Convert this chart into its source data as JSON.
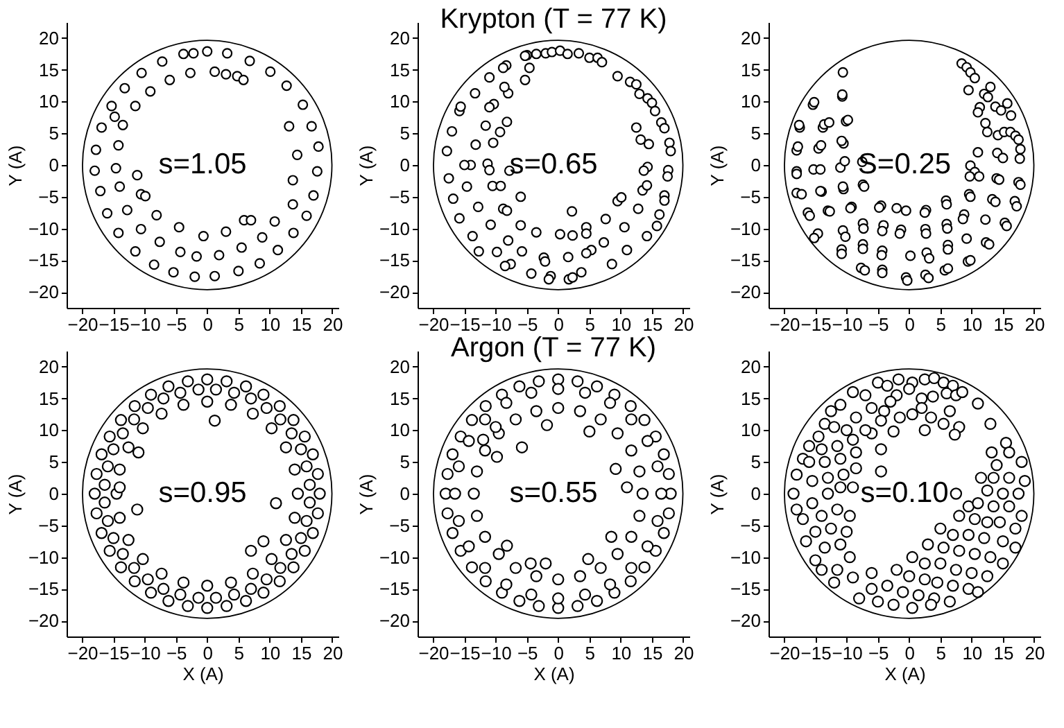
{
  "chart_data": [
    {
      "type": "scatter",
      "ylabel": "Y (A)",
      "annotations": [
        "s=1.05"
      ],
      "xlim": [
        -22.5,
        21
      ],
      "ylim": [
        -22.5,
        22.5
      ],
      "xticks": [
        -20,
        -15,
        -10,
        -5,
        0,
        5,
        10,
        15,
        20
      ],
      "yticks": [
        -20,
        -15,
        -10,
        -5,
        0,
        5,
        10,
        15,
        20
      ],
      "marker": "circle",
      "series": [
        {
          "type": "scatter",
          "color": "#000000",
          "x": [
            0,
            3.2,
            -2.2,
            -3.8,
            -7.2,
            -10.5,
            -13.2,
            -15.3,
            -16.9,
            -17.8,
            -18,
            -17.1,
            -16,
            -14.2,
            -11.5,
            -8.5,
            -5.4,
            -2,
            1.2,
            5,
            8.4,
            11.3,
            13.8,
            15.9,
            17,
            17.6,
            17.8,
            16.7,
            15.3,
            12.7,
            10.1,
            6.8,
            -2.7,
            -6,
            -9.1,
            -11.5,
            -13.5,
            -14.2,
            -14.6,
            -14,
            -12.8,
            -10.6,
            -7.6,
            -4.3,
            -1.7,
            1.9,
            5.5,
            8.8,
            10.8,
            13.7,
            13.7,
            14.4,
            13.1,
            1.2,
            3,
            4.8,
            5.8,
            -11.2,
            -10.6,
            -9.9,
            -8.1,
            -0.6,
            3,
            -4.5,
            5.9,
            7,
            -14.8
          ],
          "values": [
            17.9,
            17.6,
            17.6,
            17.5,
            16.3,
            14.5,
            12.1,
            9.3,
            5.9,
            2.4,
            -0.9,
            -4.1,
            -7.6,
            -10.7,
            -13.6,
            -15.7,
            -16.9,
            -17.6,
            -17.5,
            -16.7,
            -15.5,
            -13.4,
            -10.7,
            -8,
            -4.8,
            -1,
            2.9,
            6.1,
            9.5,
            12.5,
            14.7,
            16.4,
            14.5,
            13.4,
            11.6,
            9.3,
            6.3,
            3.1,
            -0.5,
            -3.4,
            -7.1,
            -10.1,
            -12.1,
            -13.7,
            -14.4,
            -14.2,
            -13,
            -11.4,
            -8.9,
            -6.2,
            -2.4,
            1.6,
            6.1,
            14.7,
            14.3,
            14,
            13.4,
            -1.6,
            -4.6,
            -4.9,
            -7.9,
            -11.2,
            -10.5,
            -9.8,
            -8.7,
            -8.7,
            7.6
          ]
        }
      ]
    },
    {
      "type": "scatter",
      "title": "Krypton (T = 77 K)",
      "ylabel": "Y (A)",
      "annotations": [
        "s=0.65"
      ],
      "xlim": [
        -22.5,
        21
      ],
      "ylim": [
        -22.5,
        22.5
      ],
      "xticks": [
        -20,
        -15,
        -10,
        -5,
        0,
        5,
        10,
        15,
        20
      ],
      "yticks": [
        -20,
        -15,
        -10,
        -5,
        0,
        5,
        10,
        15,
        20
      ],
      "marker": "circle",
      "series": [
        {
          "type": "scatter",
          "color": "#000000",
          "x": [
            -5,
            -3.5,
            -2,
            -1,
            0.3,
            1.5,
            3.3,
            5,
            6.3,
            7,
            9.5,
            11.5,
            12.5,
            13,
            14.3,
            15,
            15.5,
            16.5,
            17,
            17.8,
            18,
            17.6,
            17.5,
            17,
            17,
            16.2,
            15.8,
            14.2,
            11,
            8.6,
            7.3,
            5.3,
            4.5,
            3.7,
            1.7,
            2.3,
            -1.2,
            -1.5,
            -4.3,
            -7.6,
            -8.5,
            -9.8,
            -12.7,
            -13.7,
            -15.8,
            -16.8,
            -17.5,
            -17.8,
            -17,
            -15.8,
            -15.6,
            -13.3,
            -11,
            -8.3,
            -8.8,
            -5.3,
            -4.6,
            -5.3,
            -8,
            -8.6,
            -10.3,
            -11,
            -11.6,
            -13.2,
            -10.4,
            -14,
            -15,
            -11.3,
            -11,
            -14.6,
            -10.5,
            -9.2,
            -12.8,
            -10.8,
            -8.8,
            -8.2,
            -8,
            -6,
            -5.8,
            -3.5,
            -2.3,
            -2.1,
            0.3,
            1.6,
            2.3,
            4.5,
            4.5,
            7.6,
            9.5,
            10.1,
            12.8,
            13.5,
            14.2,
            14.3,
            13.7,
            14.5,
            13.2,
            12.5,
            10.6,
            2.2,
            -6,
            -7.8,
            -8.2,
            -9.3
          ],
          "values": [
            17.3,
            17.5,
            17.6,
            17.8,
            18,
            17.5,
            17.6,
            16.9,
            16.9,
            16.2,
            14,
            13.1,
            12.7,
            11.2,
            10.5,
            9.8,
            8.5,
            6.7,
            5.8,
            3.5,
            2.2,
            -0.8,
            -1.8,
            -4.8,
            -5.6,
            -7.8,
            -9.6,
            -11.2,
            -13.4,
            -15.6,
            -12.2,
            -13.4,
            -13.9,
            -16.9,
            -18,
            -17.7,
            -17.5,
            -18,
            -17.1,
            -15.6,
            -15.9,
            -13.7,
            -13.6,
            -11.2,
            -8.4,
            -5.3,
            -2.1,
            2.2,
            5.3,
            8.5,
            9.2,
            11.3,
            13.8,
            15.7,
            15.3,
            17.2,
            15.3,
            13.4,
            11.3,
            12.3,
            9.6,
            9.1,
            6.2,
            3.2,
            3.5,
            0,
            0,
            0.2,
            -0.8,
            -3.4,
            -3.3,
            -3.3,
            -6.6,
            -9.4,
            -6.9,
            -7.2,
            -11.9,
            -9.5,
            -13.6,
            -10.6,
            -14.6,
            -15.2,
            -10.9,
            -14.5,
            -11.1,
            -9.8,
            -10.8,
            -8.5,
            -5.7,
            -5.1,
            -6.9,
            -4,
            -3.2,
            -0.3,
            -0.9,
            3.3,
            4,
            5.9,
            -9.8,
            -7.3,
            -5,
            -0.9,
            6.8,
            5.2
          ]
        }
      ]
    },
    {
      "type": "scatter",
      "ylabel": "Y (A)",
      "annotations": [
        "S=0.25"
      ],
      "xlim": [
        -22.5,
        21
      ],
      "ylim": [
        -22.5,
        22.5
      ],
      "xticks": [
        -20,
        -15,
        -10,
        -5,
        0,
        5,
        10,
        15,
        20
      ],
      "yticks": [
        -20,
        -15,
        -10,
        -5,
        0,
        5,
        10,
        15,
        20
      ],
      "marker": "circle",
      "series": [
        {
          "type": "scatter",
          "color": "#000000",
          "x": [
            8.4,
            9.2,
            9.8,
            10.5,
            9.5,
            12,
            13,
            12.6,
            11.3,
            13.8,
            11,
            14.7,
            15.7,
            16.3,
            12.2,
            12.5,
            14.2,
            15.2,
            16.2,
            17,
            17.5,
            17.8,
            17.7,
            14.1,
            15,
            11,
            9.8,
            10.5,
            11.2,
            9.7,
            14,
            14.4,
            17.5,
            17.8,
            9.6,
            9.8,
            13.3,
            13.8,
            16.9,
            17.2,
            8.8,
            8.6,
            12.2,
            15.3,
            15.6,
            5.9,
            6,
            2.7,
            2.5,
            -0.5,
            -2,
            -4.5,
            -4.8,
            -7.4,
            -7.3,
            -4.1,
            -4.3,
            -1.3,
            -1.5,
            2.6,
            2.7,
            6,
            6.1,
            9.2,
            12.3,
            12.8,
            6.2,
            6.2,
            2.8,
            3.2,
            0.2,
            -4.3,
            -4.4,
            -7.4,
            -7.4,
            -10.6,
            -10.8,
            -10.8,
            -7.7,
            -7.1,
            -4.3,
            -4.3,
            -0.5,
            -0.3,
            2.6,
            3.1,
            5.7,
            6.2,
            9.4,
            9.8,
            -14.6,
            -16.2,
            -15.9,
            -13,
            -12.7,
            -9.2,
            -9.4,
            -18,
            -17.2,
            -14,
            -14.2,
            -10.5,
            -10.6,
            -7.4,
            -7.2,
            -18,
            -18,
            -15.3,
            -14.2,
            -11,
            -10.3,
            -7.5,
            -18,
            -17.8,
            -14.5,
            -14.1,
            -10.5,
            -10.8,
            -17.5,
            -17.6,
            -13.8,
            -13.6,
            -12.8,
            -10.1,
            -9.8,
            -15.4,
            -15.2,
            -10.7,
            -10.7,
            -10.6,
            -10.2,
            -15.2
          ],
          "values": [
            16,
            15.4,
            14.6,
            13.7,
            11.8,
            11.2,
            12.3,
            10.7,
            9.1,
            9.2,
            8.3,
            8.6,
            9.7,
            7.8,
            6.6,
            5.2,
            4.7,
            5.2,
            5.2,
            4.6,
            4,
            2.5,
            1,
            1.9,
            1.1,
            2,
            -0.1,
            -1.1,
            -1.8,
            -1.8,
            -2.1,
            -2.3,
            -2.7,
            -3.1,
            -4.6,
            -5,
            -5.4,
            -5.8,
            -5.7,
            -6.5,
            -7.8,
            -8.5,
            -8.6,
            -9.1,
            -9.6,
            -5.6,
            -6.2,
            -7.1,
            -7.5,
            -7.2,
            -6.8,
            -6.4,
            -6.7,
            -9.2,
            -10,
            -9.5,
            -10.4,
            -10.2,
            -10.8,
            -10.1,
            -10.8,
            -9.3,
            -10,
            -11.6,
            -12.2,
            -12.5,
            -12.6,
            -13.3,
            -13.8,
            -14.7,
            -14.3,
            -13.5,
            -14.2,
            -12.5,
            -13.2,
            -10.3,
            -13.3,
            -14,
            -16.2,
            -16.6,
            -16.5,
            -17,
            -17.7,
            -18.2,
            -17.3,
            -17.8,
            -16.6,
            -16.3,
            -15.2,
            -15,
            -10.8,
            -7.5,
            -8,
            -7.2,
            -7.3,
            -6.6,
            -6.8,
            -4.4,
            -4.6,
            -4.2,
            -4.1,
            -3.8,
            -3.4,
            -3.1,
            -3.4,
            -1,
            -1.4,
            -0.7,
            -0.7,
            -0.4,
            0.6,
            0.5,
            2.3,
            2.9,
            2.6,
            3.1,
            3.4,
            3.8,
            5.9,
            6.3,
            5.9,
            6.4,
            6.7,
            6.9,
            7.1,
            9.5,
            9.9,
            10.8,
            11.1,
            14.6,
            -11.3,
            -11.5
          ]
        }
      ]
    },
    {
      "type": "scatter",
      "xlabel": "X (A)",
      "ylabel": "Y (A)",
      "annotations": [
        "s=0.95"
      ],
      "xlim": [
        -22.5,
        21
      ],
      "ylim": [
        -22.5,
        22.5
      ],
      "xticks": [
        -20,
        -15,
        -10,
        -5,
        0,
        5,
        10,
        15,
        20
      ],
      "yticks": [
        -20,
        -15,
        -10,
        -5,
        0,
        5,
        10,
        15,
        20
      ],
      "marker": "circle",
      "series": [
        {
          "type": "scatter",
          "color": "#000000",
          "x": [
            18,
            17.7,
            16.9,
            15.6,
            13.8,
            11.6,
            9,
            6.2,
            3.1,
            0,
            -3.1,
            -6.2,
            -9,
            -11.6,
            -13.8,
            -15.6,
            -16.9,
            -17.7,
            -18,
            -17.7,
            -16.9,
            -15.6,
            -13.8,
            -11.6,
            -9,
            -6.2,
            -3.1,
            0,
            3.1,
            6.2,
            9,
            11.6,
            13.8,
            15.6,
            16.9,
            17.7,
            16.4,
            15.9,
            15,
            13.5,
            11.7,
            9.5,
            7,
            4.3,
            1.4,
            -1.4,
            -4.3,
            -7,
            -9.5,
            -11.7,
            -13.5,
            -15,
            -15.9,
            -16.4,
            -16.4,
            -15.9,
            -15,
            -13.5,
            -11.7,
            -9.5,
            -7,
            -4.3,
            -1.4,
            1.4,
            4.3,
            7,
            9.5,
            11.7,
            13.5,
            15,
            15.9,
            16.4,
            14.5,
            14,
            12.6,
            10.3,
            7.3,
            3.8,
            0,
            -3.8,
            -7.3,
            -10.3,
            -12.6,
            -14,
            -14.5,
            -14,
            -12.6,
            -10.3,
            -7.3,
            -3.8,
            0,
            3.8,
            7.3,
            10.3,
            12.6,
            14,
            1.2,
            -11.2,
            -11,
            11,
            7,
            9,
            -14
          ],
          "values": [
            0,
            3.1,
            6.2,
            9,
            11.6,
            13.8,
            15.6,
            16.9,
            17.7,
            18,
            17.7,
            16.9,
            15.6,
            13.8,
            11.6,
            9,
            6.2,
            3.1,
            0,
            -3.1,
            -6.2,
            -9,
            -11.6,
            -13.8,
            -15.6,
            -16.9,
            -17.7,
            -18,
            -17.7,
            -16.9,
            -15.6,
            -13.8,
            -11.6,
            -9,
            -6.2,
            -3.1,
            1.4,
            4.3,
            7,
            9.5,
            11.7,
            13.5,
            15,
            15.9,
            16.4,
            16.4,
            15.9,
            15,
            13.5,
            11.7,
            9.5,
            7,
            4.3,
            1.4,
            -1.4,
            -4.3,
            -7,
            -9.5,
            -11.7,
            -13.5,
            -15,
            -15.9,
            -16.4,
            -16.4,
            -15.9,
            -15,
            -13.5,
            -11.7,
            -9.5,
            -7,
            -4.3,
            -1.4,
            0,
            3.8,
            7.3,
            10.3,
            12.6,
            14,
            14.5,
            14,
            12.6,
            10.3,
            7.3,
            3.8,
            0,
            -3.8,
            -7.3,
            -10.3,
            -12.6,
            -14,
            -14.5,
            -14,
            -12.6,
            -10.3,
            -7.3,
            -3.8,
            11.5,
            -2.5,
            6.5,
            -1.5,
            -9,
            -7.5,
            1
          ]
        }
      ]
    },
    {
      "type": "scatter",
      "title": "Argon (T = 77 K)",
      "xlabel": "X (A)",
      "ylabel": "Y (A)",
      "annotations": [
        "s=0.55"
      ],
      "xlim": [
        -22.5,
        21
      ],
      "ylim": [
        -22.5,
        22.5
      ],
      "xticks": [
        -20,
        -15,
        -10,
        -5,
        0,
        5,
        10,
        15,
        20
      ],
      "yticks": [
        -20,
        -15,
        -10,
        -5,
        0,
        5,
        10,
        15,
        20
      ],
      "marker": "circle",
      "series": [
        {
          "type": "scatter",
          "color": "#000000",
          "x": [
            18,
            17.7,
            16.9,
            15.6,
            13.8,
            11.6,
            9,
            6.2,
            3.1,
            0,
            -3.1,
            -6.2,
            -9,
            -11.6,
            -13.8,
            -15.6,
            -16.9,
            -17.7,
            -18,
            -17.7,
            -16.9,
            -15.6,
            -13.8,
            -11.6,
            -9,
            -6.2,
            -3.1,
            0,
            3.1,
            6.2,
            9,
            11.6,
            13.8,
            15.6,
            16.9,
            17.7,
            16.5,
            15.9,
            14.3,
            11.7,
            8.3,
            4.3,
            0,
            -4.3,
            -8.3,
            -11.7,
            -14.3,
            -15.9,
            -16.5,
            -15.9,
            -14.3,
            -11.7,
            -8.3,
            -4.3,
            0,
            4.3,
            8.3,
            11.7,
            14.3,
            15.9,
            13.5,
            13,
            11.7,
            9.5,
            6.8,
            3.5,
            0,
            -3.5,
            -6.8,
            -9.5,
            -11.7,
            -13,
            -13.5,
            -13,
            -11.7,
            -9.5,
            -6.8,
            -3.5,
            0,
            3.5,
            6.8,
            9.5,
            11.7,
            13,
            -1.8,
            5,
            -5.8,
            -9.8,
            -8.2,
            4.8,
            9.2,
            -4.4,
            -2,
            8.5,
            -10,
            -12,
            11
          ],
          "values": [
            0,
            3.1,
            6.2,
            9,
            11.6,
            13.8,
            15.6,
            16.9,
            17.7,
            18,
            17.7,
            16.9,
            15.6,
            13.8,
            11.6,
            9,
            6.2,
            3.1,
            0,
            -3.1,
            -6.2,
            -9,
            -11.6,
            -13.8,
            -15.6,
            -16.9,
            -17.7,
            -18,
            -17.7,
            -16.9,
            -15.6,
            -13.8,
            -11.6,
            -9,
            -6.2,
            -3.1,
            0,
            4.3,
            8.3,
            11.7,
            14.3,
            15.9,
            16.5,
            15.9,
            14.3,
            11.7,
            8.3,
            4.3,
            0,
            -4.3,
            -8.3,
            -11.7,
            -14.3,
            -15.9,
            -16.5,
            -15.9,
            -14.3,
            -11.7,
            -8.3,
            -4.3,
            0,
            3.5,
            6.8,
            9.5,
            11.7,
            13,
            13.5,
            13,
            11.7,
            9.5,
            6.8,
            3.5,
            0,
            -3.5,
            -6.8,
            -9.5,
            -11.7,
            -13,
            -13.5,
            -13,
            -11.7,
            -9.5,
            -6.8,
            -3.5,
            10.8,
            9.8,
            7.3,
            5.8,
            -8.2,
            -10.3,
            3.9,
            -11,
            -11,
            -6.8,
            10.5,
            8.5,
            1
          ]
        }
      ]
    },
    {
      "type": "scatter",
      "xlabel": "X (A)",
      "ylabel": "Y (A)",
      "annotations": [
        "s=0.10"
      ],
      "xlim": [
        -22.5,
        21
      ],
      "ylim": [
        -22.5,
        22.5
      ],
      "xticks": [
        -20,
        -15,
        -10,
        -5,
        0,
        5,
        10,
        15,
        20
      ],
      "yticks": [
        -20,
        -15,
        -10,
        -5,
        0,
        5,
        10,
        15,
        20
      ],
      "marker": "circle",
      "series": [
        {
          "type": "scatter",
          "color": "#000000",
          "x": [
            -5,
            -3.5,
            -1.7,
            0.5,
            2.5,
            4,
            5.5,
            7,
            -2,
            0,
            2,
            3.8,
            6,
            7.5,
            8.5,
            11,
            -9,
            -7,
            -11,
            -12.5,
            -6,
            -4,
            -1.5,
            0.5,
            2,
            3.5,
            5.5,
            6.5,
            8,
            7.3,
            2.5,
            -2.5,
            -4.5,
            -8.5,
            -10,
            -13.5,
            -14.5,
            -16,
            -17,
            -18,
            -18.5,
            -18,
            -17,
            -16.5,
            -15,
            -14,
            -11.5,
            -12,
            -9,
            -9.5,
            -11,
            -13.5,
            -15,
            -12.5,
            -10,
            -9.5,
            -11.5,
            -14,
            -15.5,
            -13,
            -11,
            -9,
            -15.5,
            -13,
            -10.5,
            -8.5,
            -16,
            -13.5,
            -11,
            -8.5,
            -14,
            -11.5,
            -9,
            -6,
            -4.5,
            -4.5,
            -12,
            -7,
            -3,
            13,
            15.5,
            13.2,
            16,
            18,
            14,
            11.5,
            13.5,
            16,
            18.5,
            12.5,
            15,
            17.5,
            7.5,
            9.5,
            11,
            13.5,
            16,
            18,
            8,
            10.5,
            12.5,
            14.5,
            17,
            5,
            7,
            9.5,
            12,
            15,
            17,
            3,
            5.5,
            8,
            10.5,
            13,
            15,
            0.5,
            2.5,
            5,
            7.5,
            10,
            12.5,
            -2,
            0,
            2.5,
            4.5,
            7,
            9.5,
            11,
            -3.5,
            -1,
            1.5,
            4,
            6.5,
            -6,
            -5,
            -2.5,
            0.5,
            3.5,
            -8,
            -6
          ],
          "values": [
            17.5,
            17,
            18,
            17.5,
            18,
            18.2,
            17.5,
            17,
            15.5,
            16.5,
            15,
            15.3,
            15.8,
            15.5,
            16,
            14.2,
            16,
            15.5,
            14,
            13,
            13.5,
            13,
            12,
            12.5,
            13.5,
            12,
            11,
            13,
            10.5,
            9.3,
            10,
            9.8,
            11.5,
            12,
            10,
            11,
            9,
            7.5,
            5.5,
            3,
            0,
            -2.5,
            -4,
            -7.5,
            -10.5,
            -12,
            -12,
            -14,
            -13.2,
            -10,
            -8,
            -8.5,
            -6,
            -5.5,
            -6,
            -3.5,
            -2.5,
            -3.5,
            -1.5,
            0,
            1,
            1,
            2,
            2.5,
            3,
            4,
            5,
            5,
            5.5,
            6.5,
            7,
            7.5,
            8.5,
            9.5,
            7,
            3.5,
            10.5,
            10,
            14.5,
            11,
            8,
            6.5,
            6.5,
            5,
            4.5,
            2.5,
            2.5,
            2.5,
            2,
            0.5,
            0,
            0,
            0,
            -2,
            -1.5,
            -2,
            -2,
            -3.5,
            -3.5,
            -4,
            -4.5,
            -4.5,
            -5.5,
            -5.5,
            -6.5,
            -6.5,
            -7,
            -7.5,
            -8.5,
            -8,
            -8.5,
            -9,
            -9.5,
            -10,
            -11,
            -10,
            -11,
            -11,
            -12,
            -12.5,
            -13,
            -12,
            -13,
            -13.5,
            -14,
            -14.5,
            -15,
            -15.5,
            -14.5,
            -15.5,
            -16,
            -16.5,
            -17,
            -15,
            -17,
            -17.5,
            -18,
            -17.5,
            -16.5,
            -12.5
          ]
        }
      ]
    }
  ]
}
